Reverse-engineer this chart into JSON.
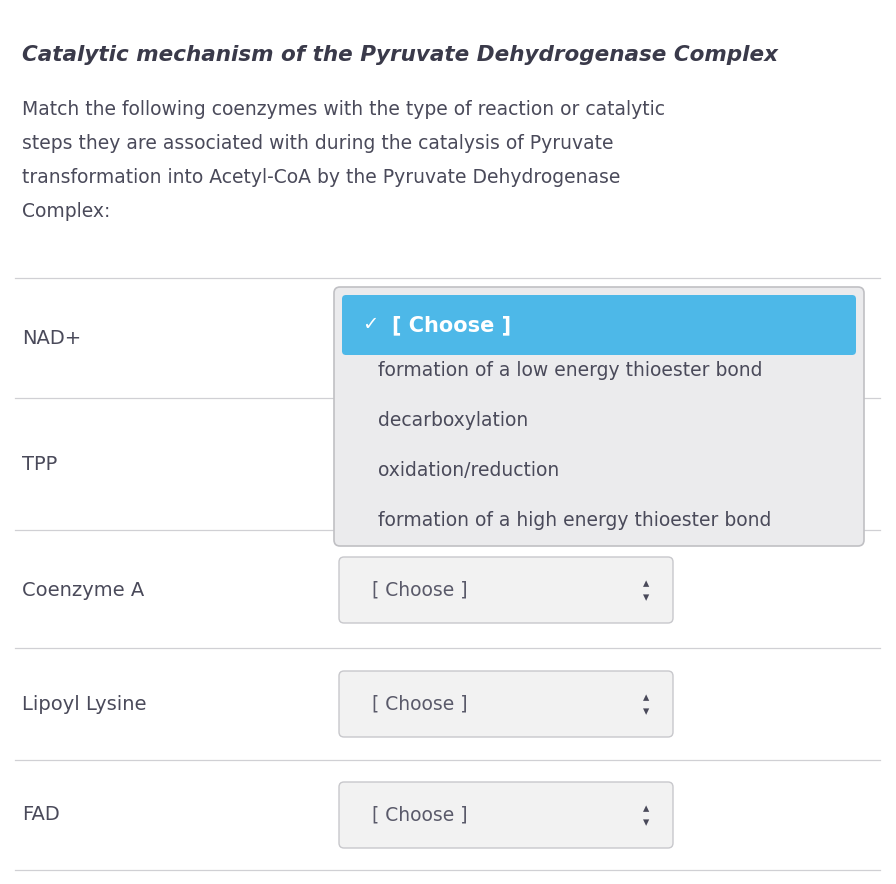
{
  "title": "Catalytic mechanism of the Pyruvate Dehydrogenase Complex",
  "coenzymes": [
    "NAD+",
    "TPP",
    "Coenzyme A",
    "Lipoyl Lysine",
    "FAD"
  ],
  "dropdown_options": [
    "[ Choose ]",
    "formation of a low energy thioester bond",
    "decarboxylation",
    "oxidation/reduction",
    "formation of a high energy thioester bond"
  ],
  "bg_color": "#ffffff",
  "text_color": "#4a4a5a",
  "title_color": "#3a3a4a",
  "dropdown_bg_light": "#f2f2f2",
  "dropdown_bg_darker": "#e6e6e8",
  "dropdown_border": "#c8c8cc",
  "dropdown_text_color": "#4a4a5a",
  "selected_bg": "#4db8e8",
  "selected_text_color": "#ffffff",
  "separator_color": "#d0d0d4",
  "popup_bg": "#ebebed",
  "popup_border": "#c0c0c4",
  "checkmark": "✓"
}
